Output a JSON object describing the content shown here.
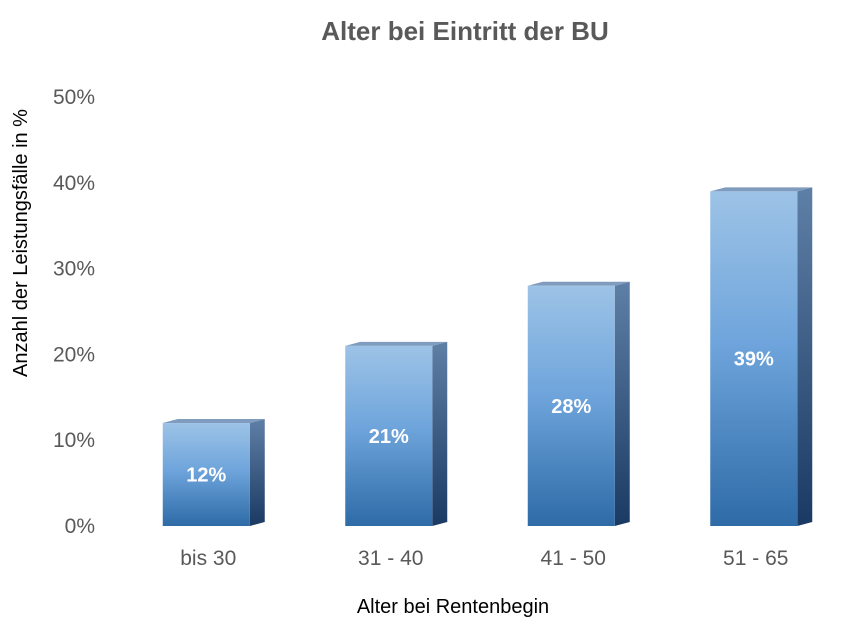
{
  "chart_data": {
    "type": "bar",
    "title": "Alter bei Eintritt der BU",
    "xlabel": "Alter bei Rentenbegin",
    "ylabel": "Anzahl der Leistungsfälle in %",
    "categories": [
      "bis 30",
      "31 - 40",
      "41 - 50",
      "51 - 65"
    ],
    "values": [
      12,
      21,
      28,
      39
    ],
    "data_labels": [
      "12%",
      "21%",
      "28%",
      "39%"
    ],
    "ylim": [
      0,
      50
    ],
    "y_ticks": [
      0,
      10,
      20,
      30,
      40,
      50
    ],
    "y_tick_labels": [
      "0%",
      "10%",
      "20%",
      "30%",
      "40%",
      "50%"
    ],
    "grid": false,
    "legend": "none",
    "style": "3d-column",
    "colors": {
      "bar_light": "#9DC3E6",
      "bar_mid": "#5B9BD5",
      "bar_dark": "#2E6BA7",
      "side": "#1F3F66",
      "top": "#7F9BBE"
    }
  }
}
